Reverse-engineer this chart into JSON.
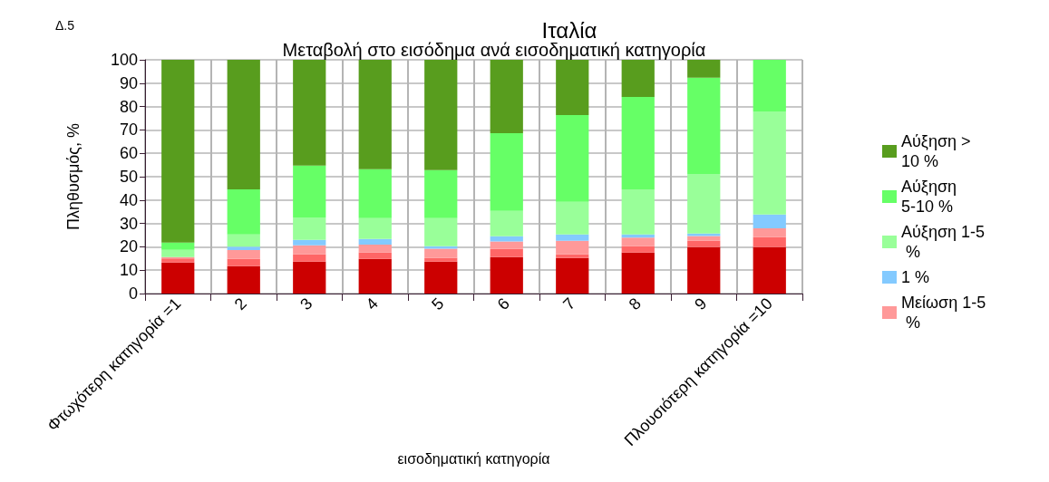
{
  "chart_data": {
    "type": "bar",
    "stacked": true,
    "title": "Ιταλία",
    "subtitle": "Μεταβολή στο εισόδημα ανά εισοδηματική κατηγορία",
    "xlabel": "εισοδηματική κατηγορία",
    "ylabel": "Πληθυσμός, %",
    "annotations": [
      "Δ.5"
    ],
    "categories": [
      "Φτωχότερη κατηγορία =1",
      "2",
      "3",
      "4",
      "5",
      "6",
      "7",
      "8",
      "9",
      "Πλουσιότερη κατηγορία =10"
    ],
    "series": [
      {
        "color": "#cc0000",
        "values": [
          13.3,
          11.7,
          13.7,
          14.8,
          13.7,
          15.6,
          15.2,
          17.5,
          19.9,
          19.9
        ]
      },
      {
        "color": "#ff6666",
        "values": [
          1.7,
          3.1,
          3.1,
          2.7,
          1.5,
          3.5,
          1.6,
          2.8,
          2.7,
          4.2
        ]
      },
      {
        "name": "Μείωση 1-5 %",
        "color": "#ff9999",
        "values": [
          0.6,
          3.8,
          3.8,
          3.4,
          4.0,
          3.2,
          5.8,
          3.6,
          2.0,
          3.8
        ]
      },
      {
        "name": "1 %",
        "color": "#83caff",
        "values": [
          0,
          1.5,
          2.4,
          2.5,
          1.1,
          2.2,
          2.7,
          1.4,
          1.1,
          5.9
        ]
      },
      {
        "name": "Αύξηση 1-5 %",
        "color": "#99ff99",
        "values": [
          3.1,
          5.2,
          9.6,
          8.9,
          12.0,
          10.9,
          13.9,
          19.3,
          25.5,
          44.1
        ]
      },
      {
        "name": "Αύξηση 5-10 %",
        "color": "#66ff66",
        "values": [
          3.1,
          19.3,
          22.1,
          20.9,
          20.5,
          33.2,
          37.2,
          39.5,
          41.1,
          22.1
        ]
      },
      {
        "name": "Αύξηση > 10 %",
        "color": "#589d1e",
        "values": [
          78.2,
          55.4,
          45.3,
          46.8,
          47.2,
          31.4,
          23.6,
          15.9,
          7.7,
          0
        ]
      }
    ],
    "ylim": [
      0,
      100
    ],
    "yticks": [
      0,
      10,
      20,
      30,
      40,
      50,
      60,
      70,
      80,
      90,
      100
    ],
    "grid": true,
    "legend": "right"
  }
}
